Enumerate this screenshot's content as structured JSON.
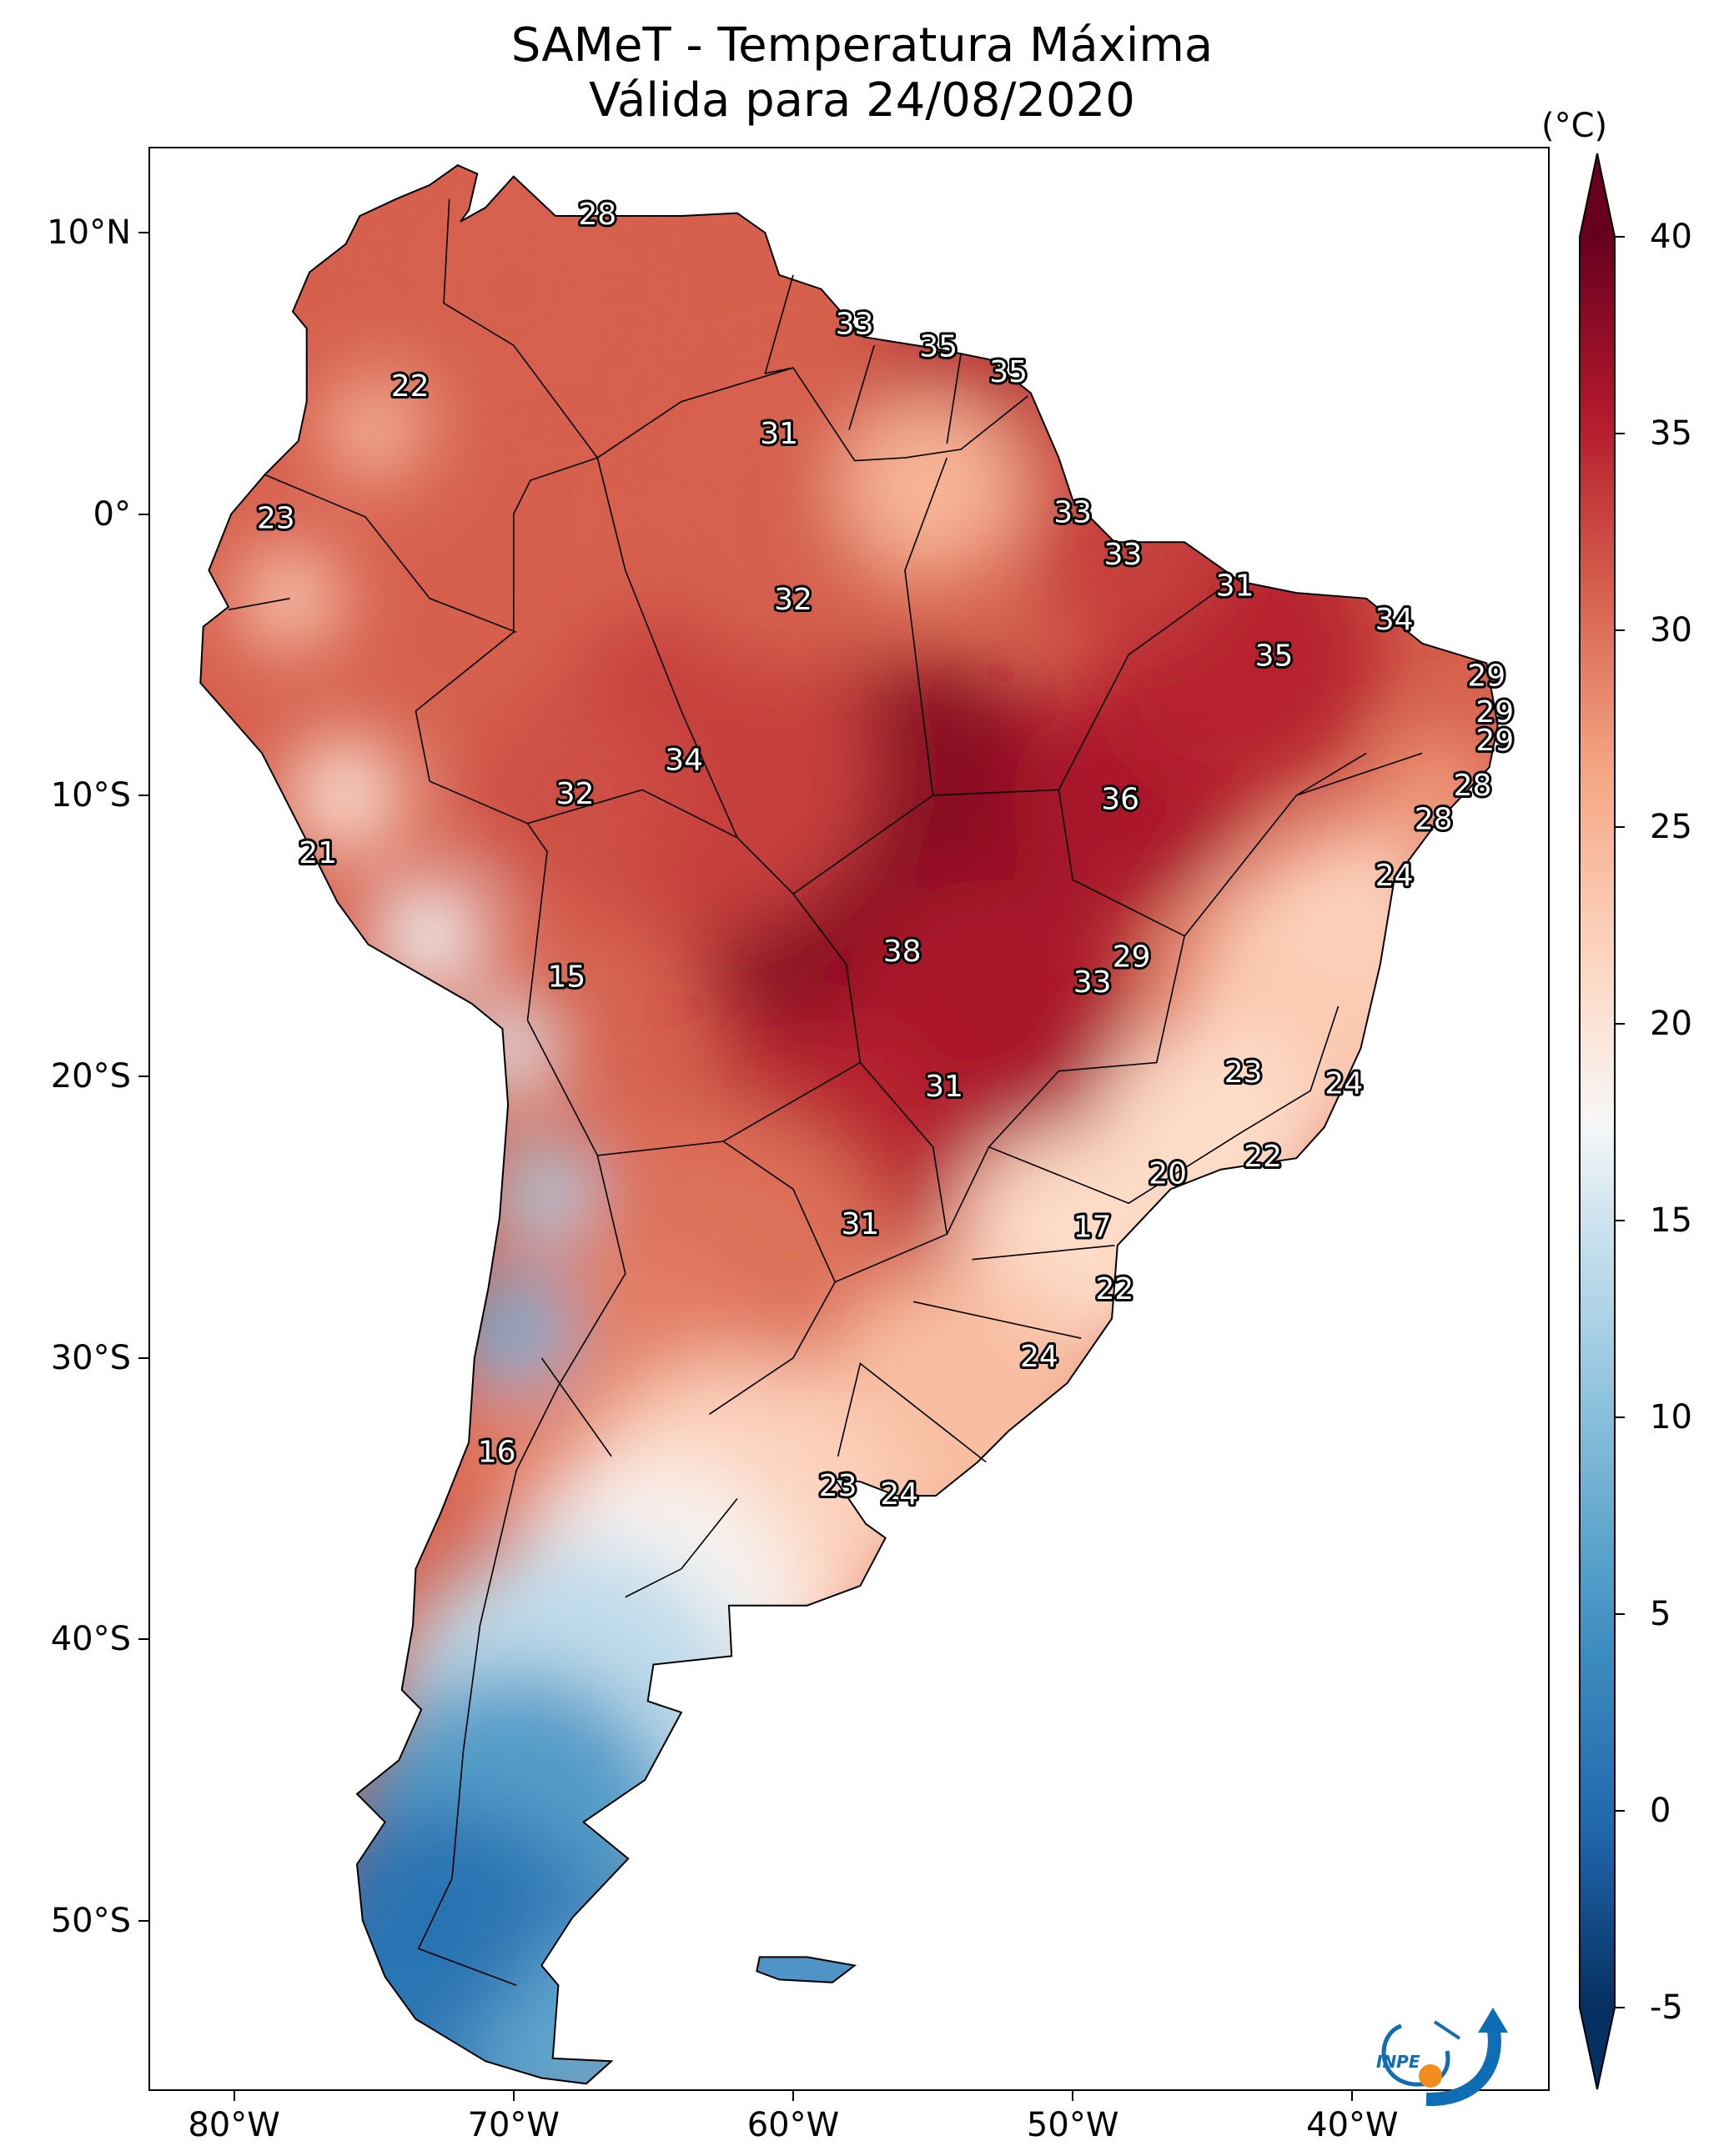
{
  "title": {
    "line1": "SAMeT - Temperatura Máxima",
    "line2": "Válida para 24/08/2020"
  },
  "map": {
    "region": "South America",
    "variable": "maximum temperature",
    "colormap": "RdBu_r",
    "lat_labels": [
      "10°N",
      "0°",
      "10°S",
      "20°S",
      "30°S",
      "40°S",
      "50°S"
    ],
    "lat_values": [
      10,
      0,
      -10,
      -20,
      -30,
      -40,
      -50
    ],
    "lon_labels": [
      "80°W",
      "70°W",
      "60°W",
      "50°W",
      "40°W"
    ],
    "lon_values": [
      -80,
      -70,
      -60,
      -50,
      -40
    ],
    "lon_range": [
      -83,
      -33
    ],
    "lat_range": [
      -56,
      13
    ],
    "city_labels": [
      {
        "text": "28",
        "lon": -67.0,
        "lat": 10.6
      },
      {
        "text": "33",
        "lon": -57.8,
        "lat": 6.7
      },
      {
        "text": "35",
        "lon": -54.8,
        "lat": 5.9
      },
      {
        "text": "35",
        "lon": -52.3,
        "lat": 5.0
      },
      {
        "text": "22",
        "lon": -73.7,
        "lat": 4.5
      },
      {
        "text": "31",
        "lon": -60.5,
        "lat": 2.8
      },
      {
        "text": "33",
        "lon": -50.0,
        "lat": 0.0
      },
      {
        "text": "23",
        "lon": -78.5,
        "lat": -0.2
      },
      {
        "text": "33",
        "lon": -48.2,
        "lat": -1.5
      },
      {
        "text": "31",
        "lon": -44.2,
        "lat": -2.6
      },
      {
        "text": "32",
        "lon": -60.0,
        "lat": -3.1
      },
      {
        "text": "34",
        "lon": -38.5,
        "lat": -3.8
      },
      {
        "text": "35",
        "lon": -42.8,
        "lat": -5.1
      },
      {
        "text": "29",
        "lon": -35.2,
        "lat": -5.8
      },
      {
        "text": "29",
        "lon": -34.9,
        "lat": -7.1
      },
      {
        "text": "29",
        "lon": -34.9,
        "lat": -8.1
      },
      {
        "text": "34",
        "lon": -63.9,
        "lat": -8.8
      },
      {
        "text": "28",
        "lon": -35.7,
        "lat": -9.7
      },
      {
        "text": "32",
        "lon": -67.8,
        "lat": -10.0
      },
      {
        "text": "36",
        "lon": -48.3,
        "lat": -10.2
      },
      {
        "text": "28",
        "lon": -37.1,
        "lat": -10.9
      },
      {
        "text": "21",
        "lon": -77.0,
        "lat": -12.1
      },
      {
        "text": "24",
        "lon": -38.5,
        "lat": -12.9
      },
      {
        "text": "38",
        "lon": -56.1,
        "lat": -15.6
      },
      {
        "text": "29",
        "lon": -47.9,
        "lat": -15.8
      },
      {
        "text": "15",
        "lon": -68.1,
        "lat": -16.5
      },
      {
        "text": "33",
        "lon": -49.3,
        "lat": -16.7
      },
      {
        "text": "23",
        "lon": -43.9,
        "lat": -19.9
      },
      {
        "text": "24",
        "lon": -40.3,
        "lat": -20.3
      },
      {
        "text": "31",
        "lon": -54.6,
        "lat": -20.4
      },
      {
        "text": "22",
        "lon": -43.2,
        "lat": -22.9
      },
      {
        "text": "20",
        "lon": -46.6,
        "lat": -23.5
      },
      {
        "text": "31",
        "lon": -57.6,
        "lat": -25.3
      },
      {
        "text": "17",
        "lon": -49.3,
        "lat": -25.4
      },
      {
        "text": "22",
        "lon": -48.5,
        "lat": -27.6
      },
      {
        "text": "24",
        "lon": -51.2,
        "lat": -30.0
      },
      {
        "text": "16",
        "lon": -70.6,
        "lat": -33.4
      },
      {
        "text": "23",
        "lon": -58.4,
        "lat": -34.6
      },
      {
        "text": "24",
        "lon": -56.2,
        "lat": -34.9
      }
    ]
  },
  "colorbar": {
    "unit": "(°C)",
    "min": -5,
    "max": 40,
    "tick_labels": [
      "40",
      "35",
      "30",
      "25",
      "20",
      "15",
      "10",
      "5",
      "0",
      "-5"
    ],
    "tick_values": [
      40,
      35,
      30,
      25,
      20,
      15,
      10,
      5,
      0,
      -5
    ],
    "extend": "both"
  },
  "logo": {
    "text": "INPE",
    "colors": {
      "blue": "#0f6db5",
      "orange": "#f28c1c"
    }
  }
}
